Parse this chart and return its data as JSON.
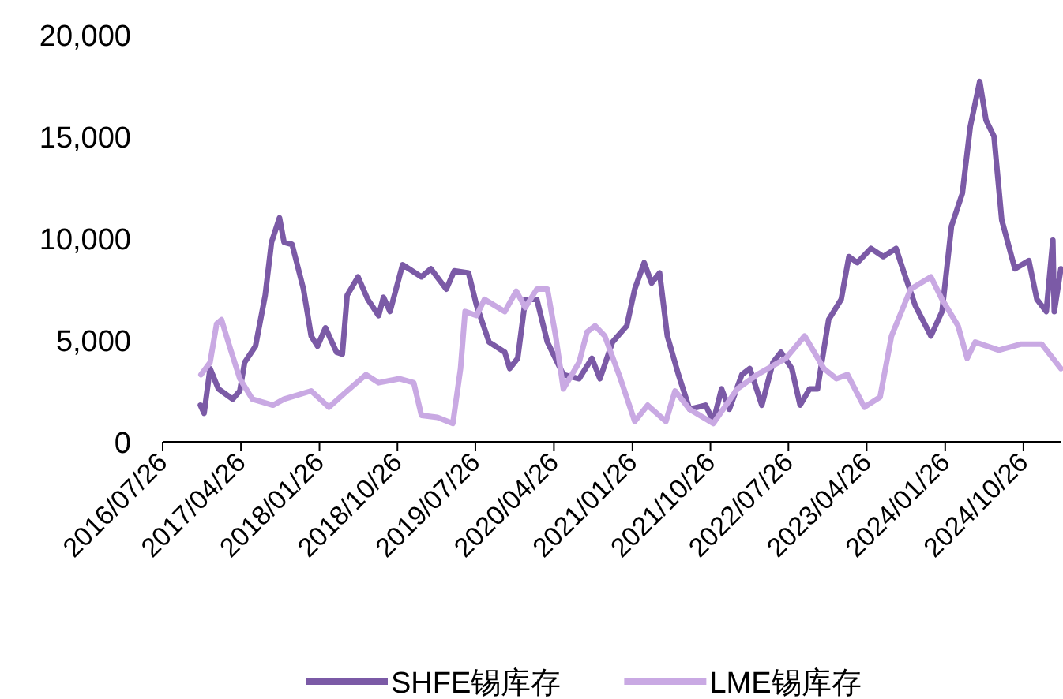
{
  "chart_data": {
    "type": "line",
    "legend": "bottom",
    "grid": false,
    "marker": "none",
    "line_style": "solid",
    "xlim": [
      "2016-07-26",
      "2025-03-08"
    ],
    "ylim": [
      0,
      20000
    ],
    "xticks": [
      {
        "value": "2016-07-26",
        "label": "2016/07/26"
      },
      {
        "value": "2017-04-26",
        "label": "2017/04/26"
      },
      {
        "value": "2018-01-26",
        "label": "2018/01/26"
      },
      {
        "value": "2018-10-26",
        "label": "2018/10/26"
      },
      {
        "value": "2019-07-26",
        "label": "2019/07/26"
      },
      {
        "value": "2020-04-26",
        "label": "2020/04/26"
      },
      {
        "value": "2021-01-26",
        "label": "2021/01/26"
      },
      {
        "value": "2021-10-26",
        "label": "2021/10/26"
      },
      {
        "value": "2022-07-26",
        "label": "2022/07/26"
      },
      {
        "value": "2023-04-26",
        "label": "2023/04/26"
      },
      {
        "value": "2024-01-26",
        "label": "2024/01/26"
      },
      {
        "value": "2024-10-26",
        "label": "2024/10/26"
      }
    ],
    "yticks": [
      0,
      {
        "value": 5000,
        "label": "5,000"
      },
      {
        "value": 10000,
        "label": "10,000"
      },
      {
        "value": 15000,
        "label": "15,000"
      },
      {
        "value": 20000,
        "label": "20,000"
      }
    ],
    "series": [
      {
        "name": "SHFE锡库存",
        "color": "#7b5aa6",
        "x": [
          "2016-12-05",
          "2016-12-18",
          "2017-01-08",
          "2017-02-06",
          "2017-03-28",
          "2017-04-22",
          "2017-05-09",
          "2017-06-16",
          "2017-07-20",
          "2017-08-11",
          "2017-09-08",
          "2017-09-24",
          "2017-10-22",
          "2017-12-01",
          "2017-12-28",
          "2018-01-19",
          "2018-02-16",
          "2018-03-27",
          "2018-04-16",
          "2018-05-03",
          "2018-06-10",
          "2018-07-14",
          "2018-08-21",
          "2018-09-07",
          "2018-09-30",
          "2018-11-13",
          "2019-01-18",
          "2019-02-20",
          "2019-04-15",
          "2019-05-13",
          "2019-07-02",
          "2019-07-30",
          "2019-09-12",
          "2019-11-06",
          "2019-11-23",
          "2019-12-21",
          "2020-01-17",
          "2020-02-26",
          "2020-04-03",
          "2020-05-29",
          "2020-07-23",
          "2020-09-06",
          "2020-10-04",
          "2020-11-17",
          "2021-01-06",
          "2021-02-03",
          "2021-03-08",
          "2021-04-03",
          "2021-05-01",
          "2021-05-28",
          "2021-07-06",
          "2021-08-14",
          "2021-10-09",
          "2021-11-05",
          "2021-12-04",
          "2021-12-31",
          "2022-02-13",
          "2022-03-13",
          "2022-04-24",
          "2022-06-02",
          "2022-06-30",
          "2022-08-07",
          "2022-09-05",
          "2022-10-08",
          "2022-11-05",
          "2022-12-14",
          "2023-01-27",
          "2023-02-23",
          "2023-03-24",
          "2023-05-11",
          "2023-06-23",
          "2023-08-07",
          "2023-09-04",
          "2023-10-13",
          "2023-12-07",
          "2024-01-15",
          "2024-02-17",
          "2024-03-26",
          "2024-04-23",
          "2024-05-26",
          "2024-06-17",
          "2024-07-15",
          "2024-08-11",
          "2024-09-26",
          "2024-11-14",
          "2024-12-12",
          "2025-01-14",
          "2025-02-06",
          "2025-02-11",
          "2025-03-06"
        ],
        "values": [
          1800,
          1400,
          3600,
          2600,
          2100,
          2500,
          3900,
          4700,
          7200,
          9800,
          11000,
          9800,
          9700,
          7500,
          5200,
          4700,
          5600,
          4400,
          4300,
          7200,
          8100,
          7000,
          6200,
          7100,
          6400,
          8700,
          8100,
          8500,
          7500,
          8400,
          8300,
          6700,
          4900,
          4400,
          3600,
          4100,
          7000,
          7000,
          4900,
          3300,
          3100,
          4100,
          3100,
          4900,
          5700,
          7500,
          8800,
          7800,
          8300,
          5200,
          3300,
          1600,
          1800,
          1000,
          2600,
          1600,
          3300,
          3600,
          1800,
          3900,
          4400,
          3600,
          1800,
          2600,
          2600,
          6000,
          7000,
          9100,
          8800,
          9500,
          9100,
          9500,
          8300,
          6700,
          5200,
          6400,
          10600,
          12200,
          15500,
          17700,
          15800,
          15000,
          10900,
          8500,
          8900,
          7000,
          6400,
          9900,
          6400,
          8500
        ]
      },
      {
        "name": "LME锡库存",
        "color": "#c9a9e3",
        "x": [
          "2016-12-07",
          "2017-01-08",
          "2017-01-31",
          "2017-02-17",
          "2017-03-17",
          "2017-04-22",
          "2017-06-05",
          "2017-08-16",
          "2017-09-24",
          "2017-12-28",
          "2018-02-28",
          "2018-05-03",
          "2018-07-08",
          "2018-08-21",
          "2018-11-02",
          "2018-12-22",
          "2019-01-18",
          "2019-03-15",
          "2019-05-08",
          "2019-06-04",
          "2019-06-20",
          "2019-07-30",
          "2019-08-27",
          "2019-11-06",
          "2019-12-16",
          "2020-01-17",
          "2020-02-26",
          "2020-04-03",
          "2020-05-02",
          "2020-05-29",
          "2020-07-23",
          "2020-08-20",
          "2020-09-17",
          "2020-10-21",
          "2020-12-15",
          "2021-02-03",
          "2021-03-20",
          "2021-05-23",
          "2021-06-24",
          "2021-08-14",
          "2021-11-05",
          "2022-01-28",
          "2022-04-08",
          "2022-07-17",
          "2022-09-21",
          "2022-11-27",
          "2023-01-10",
          "2023-02-18",
          "2023-04-18",
          "2023-06-12",
          "2023-07-22",
          "2023-09-27",
          "2023-12-07",
          "2024-01-15",
          "2024-03-11",
          "2024-04-12",
          "2024-05-10",
          "2024-08-01",
          "2024-10-18",
          "2024-12-29",
          "2025-03-06"
        ],
        "values": [
          3300,
          3900,
          5800,
          6000,
          4700,
          3100,
          2100,
          1800,
          2100,
          2500,
          1700,
          2500,
          3300,
          2900,
          3100,
          2900,
          1300,
          1200,
          900,
          3600,
          6400,
          6200,
          7000,
          6400,
          7400,
          6600,
          7500,
          7500,
          5200,
          2600,
          3900,
          5400,
          5700,
          5200,
          3100,
          1000,
          1800,
          1000,
          2500,
          1600,
          900,
          2600,
          3300,
          4100,
          5200,
          3600,
          3100,
          3300,
          1700,
          2200,
          5200,
          7500,
          8100,
          7000,
          5700,
          4100,
          4900,
          4500,
          4800,
          4800,
          3600
        ]
      }
    ]
  }
}
